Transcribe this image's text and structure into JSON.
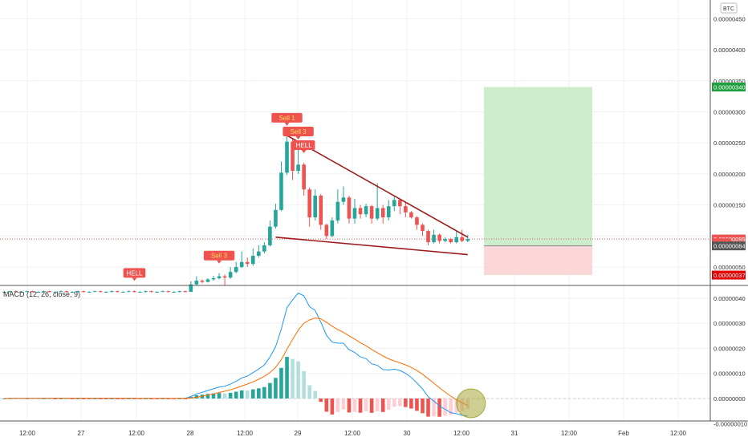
{
  "chart_data": {
    "type": "candlestick",
    "currency": "BTC",
    "x_ticks": [
      "12:00",
      "27",
      "12:00",
      "28",
      "12:00",
      "29",
      "12:00",
      "30",
      "12:00",
      "31",
      "12:00",
      "Feb",
      "12:00"
    ],
    "price_ticks": [
      "0.00000050",
      "0.00000100",
      "0.00000150",
      "0.00000200",
      "0.00000250",
      "0.00000300",
      "0.00000350",
      "0.00000400",
      "0.00000450"
    ],
    "price_tick_values": [
      5e-07,
      1e-06,
      1.5e-06,
      2e-06,
      2.5e-06,
      3e-06,
      3.5e-06,
      4e-06,
      4.5e-06
    ],
    "price_labels": [
      {
        "text": "0.00000340",
        "value": 3.4e-06,
        "color": "#1e9e3e"
      },
      {
        "text": "0.00000095",
        "value": 9.5e-07,
        "color": "#ef5350"
      },
      {
        "text": "33:32",
        "value": 8.9e-07,
        "color": "#ef5350"
      },
      {
        "text": "0.00000084",
        "value": 8.4e-07,
        "color": "#555555"
      },
      {
        "text": "0.00000037",
        "value": 3.7e-07,
        "color": "#e00000"
      }
    ],
    "signals": [
      {
        "text": "HELL",
        "i": 23
      },
      {
        "text": "Sell 3",
        "i": 38
      },
      {
        "text": "Sell 1",
        "i": 50
      },
      {
        "text": "Sell 3",
        "i": 52
      },
      {
        "text": "HELL",
        "i": 53
      }
    ],
    "candles": [
      [
        1e-07,
        1e-07,
        1.1e-07,
        9e-08
      ],
      [
        1e-07,
        1.1e-07,
        1.2e-07,
        9e-08
      ],
      [
        1.1e-07,
        1e-07,
        1.2e-07,
        9e-08
      ],
      [
        1e-07,
        1e-07,
        1.1e-07,
        9e-08
      ],
      [
        1e-07,
        1.1e-07,
        1.2e-07,
        1e-07
      ],
      [
        1.1e-07,
        1e-07,
        1.2e-07,
        9e-08
      ],
      [
        1e-07,
        1e-07,
        1.1e-07,
        9e-08
      ],
      [
        1e-07,
        1.1e-07,
        1.2e-07,
        9e-08
      ],
      [
        1.1e-07,
        1e-07,
        1.2e-07,
        9e-08
      ],
      [
        1e-07,
        1e-07,
        1.1e-07,
        9e-08
      ],
      [
        1e-07,
        1.1e-07,
        1.2e-07,
        1e-07
      ],
      [
        1.1e-07,
        1e-07,
        1.2e-07,
        9e-08
      ],
      [
        1e-07,
        1e-07,
        1.1e-07,
        9e-08
      ],
      [
        1e-07,
        1.1e-07,
        1.2e-07,
        9e-08
      ],
      [
        1.1e-07,
        1e-07,
        1.2e-07,
        9e-08
      ],
      [
        1e-07,
        1e-07,
        1.1e-07,
        9e-08
      ],
      [
        1e-07,
        1.1e-07,
        1.2e-07,
        1e-07
      ],
      [
        1.1e-07,
        1e-07,
        1.2e-07,
        9e-08
      ],
      [
        1e-07,
        1e-07,
        1.1e-07,
        9e-08
      ],
      [
        1e-07,
        1.1e-07,
        1.2e-07,
        9e-08
      ],
      [
        1.1e-07,
        1e-07,
        1.2e-07,
        9e-08
      ],
      [
        1e-07,
        1e-07,
        1.1e-07,
        9e-08
      ],
      [
        1e-07,
        1.1e-07,
        1.2e-07,
        1e-07
      ],
      [
        1.1e-07,
        1e-07,
        1.2e-07,
        9e-08
      ],
      [
        1e-07,
        1e-07,
        1.1e-07,
        9e-08
      ],
      [
        1e-07,
        1.1e-07,
        1.2e-07,
        9e-08
      ],
      [
        1.1e-07,
        1e-07,
        1.2e-07,
        9e-08
      ],
      [
        1e-07,
        1e-07,
        1.1e-07,
        9e-08
      ],
      [
        1e-07,
        1.1e-07,
        1.2e-07,
        1e-07
      ],
      [
        1.1e-07,
        1e-07,
        1.2e-07,
        9e-08
      ],
      [
        1e-07,
        1e-07,
        1.1e-07,
        9e-08
      ],
      [
        1e-07,
        1.1e-07,
        1.2e-07,
        9e-08
      ],
      [
        1.1e-07,
        1e-07,
        1.2e-07,
        9e-08
      ],
      [
        1e-07,
        2.2e-07,
        2.7e-07,
        1e-07
      ],
      [
        2.2e-07,
        2.8e-07,
        3.5e-07,
        2e-07
      ],
      [
        2.8e-07,
        2.6e-07,
        3e-07,
        2.4e-07
      ],
      [
        2.6e-07,
        3e-07,
        3.2e-07,
        2.5e-07
      ],
      [
        3e-07,
        3.2e-07,
        3.6e-07,
        2.8e-07
      ],
      [
        3.2e-07,
        3.5e-07,
        4e-07,
        3e-07
      ],
      [
        3.5e-07,
        3.3e-07,
        3.8e-07,
        2e-07
      ],
      [
        3.3e-07,
        4.2e-07,
        5e-07,
        3.1e-07
      ],
      [
        4.2e-07,
        5e-07,
        5.8e-07,
        4e-07
      ],
      [
        5e-07,
        5.8e-07,
        7.5e-07,
        4.8e-07
      ],
      [
        5.8e-07,
        5.5e-07,
        6.5e-07,
        5e-07
      ],
      [
        5.5e-07,
        6.8e-07,
        8e-07,
        5.2e-07
      ],
      [
        6.8e-07,
        7.5e-07,
        8.5e-07,
        6.5e-07
      ],
      [
        7.5e-07,
        8.5e-07,
        9e-07,
        7.2e-07
      ],
      [
        8.5e-07,
        1.15e-06,
        1.25e-06,
        8.3e-07
      ],
      [
        1.15e-06,
        1.42e-06,
        1.52e-06,
        1.12e-06
      ],
      [
        1.42e-06,
        2.02e-06,
        2.2e-06,
        1.4e-06
      ],
      [
        2.02e-06,
        2.52e-06,
        2.62e-06,
        1.98e-06
      ],
      [
        2.52e-06,
        2.05e-06,
        2.58e-06,
        1.9e-06
      ],
      [
        2.05e-06,
        2.15e-06,
        2.4e-06,
        2e-06
      ],
      [
        2.15e-06,
        1.75e-06,
        2.18e-06,
        1.65e-06
      ],
      [
        1.75e-06,
        1.3e-06,
        1.78e-06,
        1.15e-06
      ],
      [
        1.3e-06,
        1.65e-06,
        1.75e-06,
        1.25e-06
      ],
      [
        1.65e-06,
        1.18e-06,
        1.68e-06,
        1.1e-06
      ],
      [
        1.18e-06,
        1e-06,
        1.2e-06,
        9.5e-07
      ],
      [
        1e-06,
        1.25e-06,
        1.3e-06,
        9.8e-07
      ],
      [
        1.25e-06,
        1.55e-06,
        1.75e-06,
        1.2e-06
      ],
      [
        1.55e-06,
        1.62e-06,
        1.8e-06,
        1.5e-06
      ],
      [
        1.62e-06,
        1.28e-06,
        1.65e-06,
        1.2e-06
      ],
      [
        1.28e-06,
        1.45e-06,
        1.6e-06,
        1.2e-06
      ],
      [
        1.45e-06,
        1.35e-06,
        1.5e-06,
        1.28e-06
      ],
      [
        1.35e-06,
        1.48e-06,
        1.52e-06,
        1.3e-06
      ],
      [
        1.48e-06,
        1.28e-06,
        1.5e-06,
        1.2e-06
      ],
      [
        1.28e-06,
        1.45e-06,
        1.85e-06,
        1.25e-06
      ],
      [
        1.45e-06,
        1.3e-06,
        1.5e-06,
        1.2e-06
      ],
      [
        1.3e-06,
        1.48e-06,
        1.58e-06,
        1.25e-06
      ],
      [
        1.48e-06,
        1.58e-06,
        1.65e-06,
        1.4e-06
      ],
      [
        1.58e-06,
        1.48e-06,
        1.6e-06,
        1.35e-06
      ],
      [
        1.48e-06,
        1.38e-06,
        1.55e-06,
        1.3e-06
      ],
      [
        1.38e-06,
        1.3e-06,
        1.4e-06,
        1.28e-06
      ],
      [
        1.3e-06,
        1.18e-06,
        1.32e-06,
        1.1e-06
      ],
      [
        1.18e-06,
        1.08e-06,
        1.2e-06,
        1e-06
      ],
      [
        1.08e-06,
        9e-07,
        1.1e-06,
        8.5e-07
      ],
      [
        9e-07,
        1.02e-06,
        1.1e-06,
        8.8e-07
      ],
      [
        1.02e-06,
        9.2e-07,
        1.04e-06,
        8.8e-07
      ],
      [
        9.2e-07,
        9.5e-07,
        9.8e-07,
        9e-07
      ],
      [
        9.5e-07,
        9e-07,
        9.7e-07,
        8.8e-07
      ],
      [
        9e-07,
        9.8e-07,
        1.08e-06,
        8.8e-07
      ],
      [
        9.8e-07,
        9.2e-07,
        1.1e-06,
        9e-07
      ],
      [
        9.2e-07,
        9.5e-07,
        1.02e-06,
        9e-07
      ]
    ],
    "projection": {
      "entry": 8.4e-07,
      "target": 3.4e-06,
      "stop": 3.7e-07,
      "colors": {
        "profit": "#c8ecc8",
        "loss": "#fbd3d3"
      }
    },
    "trendlines": [
      {
        "from": [
          50,
          2.62e-06
        ],
        "to": [
          82,
          9.8e-07
        ]
      },
      {
        "from": [
          48,
          9.8e-07
        ],
        "to": [
          82,
          7e-07
        ]
      }
    ],
    "macd": {
      "title": "MACD (12, 26, close, 9)",
      "params": {
        "fast": 12,
        "slow": 26,
        "source": "close",
        "signal": 9
      },
      "axis_ticks": [
        "0.00000040",
        "0.00000030",
        "0.00000020",
        "0.00000010",
        "0.00000000",
        "-0.00000010"
      ],
      "axis_values": [
        4e-07,
        3e-07,
        2e-07,
        1e-07,
        0,
        -1e-07
      ],
      "colors": {
        "macd": "#2196f3",
        "signal": "#ff6d00",
        "hist_up_strong": "#26a69a",
        "hist_up_weak": "#b2dfdb",
        "hist_down_strong": "#ef5350",
        "hist_down_weak": "#ffcdd2",
        "highlight": "#a8a83a"
      }
    },
    "colors": {
      "up": "#26a69a",
      "down": "#ef5350",
      "trend": "#9c1b1b",
      "signal_box": "#ef5350",
      "signal_text": "#ffffff",
      "signal_text_alt": "#ffdd55"
    }
  }
}
